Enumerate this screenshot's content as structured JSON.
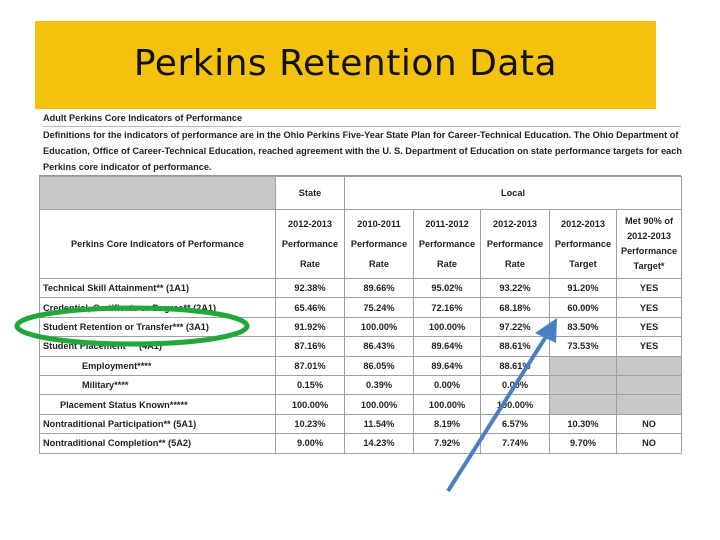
{
  "slide": {
    "title": "Perkins Retention Data"
  },
  "document": {
    "heading": "Adult Perkins Core Indicators of Performance",
    "description_lines": [
      "Definitions for the indicators of performance are in the Ohio Perkins Five-Year State Plan for Career-Technical Education. The Ohio Department of",
      "Education, Office of Career-Technical Education, reached agreement with the U. S. Department of Education on state performance targets for each",
      "Perkins core indicator of performance."
    ]
  },
  "table": {
    "group_headers": {
      "state": "State",
      "local": "Local"
    },
    "indicator_header": "Perkins Core Indicators of Performance",
    "columns": [
      [
        "2012-2013",
        "Performance",
        "Rate"
      ],
      [
        "2010-2011",
        "Performance",
        "Rate"
      ],
      [
        "2011-2012",
        "Performance",
        "Rate"
      ],
      [
        "2012-2013",
        "Performance",
        "Rate"
      ],
      [
        "2012-2013",
        "Performance",
        "Target"
      ],
      [
        "Met 90% of",
        "2012-2013",
        "Performance",
        "Target*"
      ]
    ],
    "rows": [
      {
        "label": "Technical Skill Attainment** (1A1)",
        "indent": 0,
        "values": [
          "92.38%",
          "89.66%",
          "95.02%",
          "93.22%",
          "91.20%",
          "YES"
        ]
      },
      {
        "label": "Credential, Certificate or Degree** (2A1)",
        "indent": 0,
        "values": [
          "65.46%",
          "75.24%",
          "72.16%",
          "68.18%",
          "60.00%",
          "YES"
        ]
      },
      {
        "label": "Student Retention or Transfer*** (3A1)",
        "indent": 0,
        "values": [
          "91.92%",
          "100.00%",
          "100.00%",
          "97.22%",
          "83.50%",
          "YES"
        ]
      },
      {
        "label": "Student Placement*** (4A1)",
        "indent": 0,
        "values": [
          "87.16%",
          "86.43%",
          "89.64%",
          "88.61%",
          "73.53%",
          "YES"
        ]
      },
      {
        "label": "Employment****",
        "indent": 1,
        "values": [
          "87.01%",
          "86.05%",
          "89.64%",
          "88.61%",
          "",
          ""
        ]
      },
      {
        "label": "Military****",
        "indent": 1,
        "values": [
          "0.15%",
          "0.39%",
          "0.00%",
          "0.00%",
          "",
          ""
        ]
      },
      {
        "label": "Placement Status Known*****",
        "indent": 2,
        "values": [
          "100.00%",
          "100.00%",
          "100.00%",
          "100.00%",
          "",
          ""
        ]
      },
      {
        "label": "Nontraditional Participation** (5A1)",
        "indent": 0,
        "values": [
          "10.23%",
          "11.54%",
          "8.19%",
          "6.57%",
          "10.30%",
          "NO"
        ]
      },
      {
        "label": "Nontraditional Completion** (5A2)",
        "indent": 0,
        "values": [
          "9.00%",
          "14.23%",
          "7.92%",
          "7.74%",
          "9.70%",
          "NO"
        ]
      }
    ]
  },
  "annotations": {
    "ellipse_color": "#22a83a",
    "arrow_color": "#4a7fc4"
  },
  "colors": {
    "banner": "#f4c20d",
    "grey_cell": "#c8c8c8"
  }
}
